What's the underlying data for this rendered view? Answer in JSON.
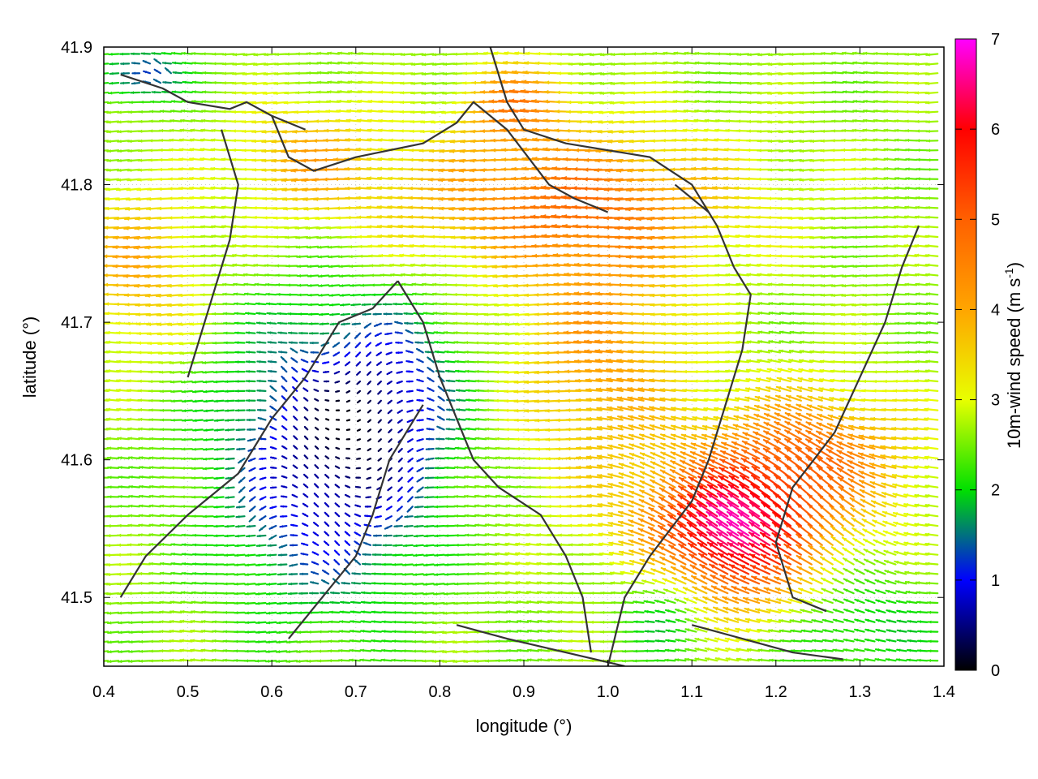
{
  "chart_data": {
    "type": "vector-field",
    "xlabel": "longitude (°)",
    "ylabel": "latitude (°)",
    "xlim": [
      0.4,
      1.4
    ],
    "ylim": [
      41.45,
      41.9
    ],
    "xticks": [
      "0.4",
      "0.5",
      "0.6",
      "0.7",
      "0.8",
      "0.9",
      "1.0",
      "1.1",
      "1.2",
      "1.3",
      "1.4"
    ],
    "yticks": [
      "41.5",
      "41.6",
      "41.7",
      "41.8",
      "41.9"
    ],
    "colorbar": {
      "label_main": "10m-wind speed (m s",
      "label_sup": "-1",
      "label_close": ")",
      "range": [
        0,
        7
      ],
      "ticks": [
        "0",
        "1",
        "2",
        "3",
        "4",
        "5",
        "6",
        "7"
      ],
      "stops": [
        {
          "v": 0,
          "c": "#000000"
        },
        {
          "v": 1,
          "c": "#0000ff"
        },
        {
          "v": 2,
          "c": "#00e000"
        },
        {
          "v": 3,
          "c": "#e8ff00"
        },
        {
          "v": 4,
          "c": "#ffa500"
        },
        {
          "v": 5,
          "c": "#ff6000"
        },
        {
          "v": 6,
          "c": "#ff0000"
        },
        {
          "v": 7,
          "c": "#ff00ff"
        }
      ]
    },
    "grid": true,
    "arrow_direction": "mostly westward (easterly wind)",
    "speed_regions": [
      {
        "region": "north-central band",
        "approx_speed": 4.5
      },
      {
        "region": "southeast jet",
        "approx_speed": 6.5
      },
      {
        "region": "southwest interior",
        "approx_speed": 1.0
      },
      {
        "region": "central green zone",
        "approx_speed": 2.0
      }
    ],
    "coastlines": [
      [
        [
          0.42,
          41.88
        ],
        [
          0.47,
          41.87
        ],
        [
          0.5,
          41.86
        ],
        [
          0.55,
          41.855
        ],
        [
          0.57,
          41.86
        ],
        [
          0.6,
          41.85
        ],
        [
          0.64,
          41.84
        ]
      ],
      [
        [
          0.6,
          41.85
        ],
        [
          0.62,
          41.82
        ],
        [
          0.65,
          41.81
        ],
        [
          0.7,
          41.82
        ],
        [
          0.78,
          41.83
        ],
        [
          0.82,
          41.845
        ],
        [
          0.84,
          41.86
        ],
        [
          0.88,
          41.84
        ],
        [
          0.93,
          41.8
        ],
        [
          0.96,
          41.79
        ],
        [
          1.0,
          41.78
        ]
      ],
      [
        [
          0.54,
          41.84
        ],
        [
          0.56,
          41.8
        ],
        [
          0.55,
          41.76
        ],
        [
          0.53,
          41.72
        ],
        [
          0.52,
          41.7
        ],
        [
          0.5,
          41.66
        ]
      ],
      [
        [
          0.86,
          41.9
        ],
        [
          0.88,
          41.86
        ],
        [
          0.9,
          41.84
        ],
        [
          0.95,
          41.83
        ],
        [
          1.05,
          41.82
        ],
        [
          1.1,
          41.8
        ],
        [
          1.13,
          41.77
        ],
        [
          1.15,
          41.74
        ]
      ],
      [
        [
          1.15,
          41.74
        ],
        [
          1.17,
          41.72
        ],
        [
          1.16,
          41.68
        ],
        [
          1.14,
          41.64
        ],
        [
          1.12,
          41.6
        ],
        [
          1.1,
          41.57
        ],
        [
          1.05,
          41.53
        ],
        [
          1.02,
          41.5
        ],
        [
          1.0,
          41.45
        ]
      ],
      [
        [
          0.75,
          41.73
        ],
        [
          0.72,
          41.71
        ],
        [
          0.68,
          41.7
        ],
        [
          0.64,
          41.66
        ],
        [
          0.6,
          41.63
        ],
        [
          0.56,
          41.59
        ],
        [
          0.5,
          41.56
        ],
        [
          0.45,
          41.53
        ],
        [
          0.42,
          41.5
        ]
      ],
      [
        [
          0.75,
          41.73
        ],
        [
          0.78,
          41.7
        ],
        [
          0.8,
          41.66
        ],
        [
          0.82,
          41.63
        ],
        [
          0.84,
          41.6
        ],
        [
          0.87,
          41.58
        ],
        [
          0.92,
          41.56
        ],
        [
          0.95,
          41.53
        ],
        [
          0.97,
          41.5
        ],
        [
          0.98,
          41.46
        ]
      ],
      [
        [
          0.78,
          41.64
        ],
        [
          0.74,
          41.6
        ],
        [
          0.72,
          41.56
        ],
        [
          0.7,
          41.53
        ],
        [
          0.66,
          41.5
        ],
        [
          0.62,
          41.47
        ]
      ],
      [
        [
          0.82,
          41.48
        ],
        [
          0.88,
          41.47
        ],
        [
          0.95,
          41.46
        ],
        [
          1.02,
          41.45
        ]
      ],
      [
        [
          1.37,
          41.77
        ],
        [
          1.35,
          41.74
        ],
        [
          1.33,
          41.7
        ],
        [
          1.3,
          41.66
        ],
        [
          1.27,
          41.62
        ],
        [
          1.22,
          41.58
        ],
        [
          1.2,
          41.54
        ],
        [
          1.22,
          41.5
        ],
        [
          1.26,
          41.49
        ]
      ],
      [
        [
          1.08,
          41.8
        ],
        [
          1.1,
          41.79
        ],
        [
          1.12,
          41.78
        ]
      ],
      [
        [
          1.1,
          41.48
        ],
        [
          1.16,
          41.47
        ],
        [
          1.22,
          41.46
        ],
        [
          1.28,
          41.455
        ]
      ]
    ]
  }
}
